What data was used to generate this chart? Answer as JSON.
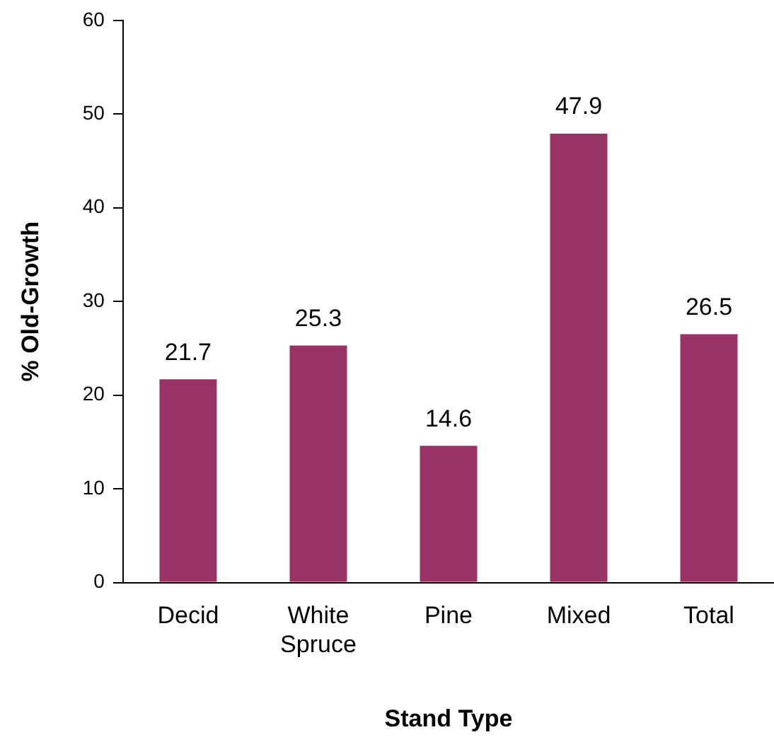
{
  "chart_data": {
    "type": "bar",
    "xlabel": "Stand Type",
    "ylabel": "% Old-Growth",
    "categories": [
      "Decid",
      "White Spruce",
      "Pine",
      "Mixed",
      "Total"
    ],
    "values": [
      21.7,
      25.3,
      14.6,
      47.9,
      26.5
    ],
    "color": "#993366",
    "ylim": [
      0,
      60
    ],
    "yticks": [
      0,
      10,
      20,
      30,
      40,
      50,
      60
    ],
    "grid": false,
    "legend": false,
    "data_labels": true
  }
}
